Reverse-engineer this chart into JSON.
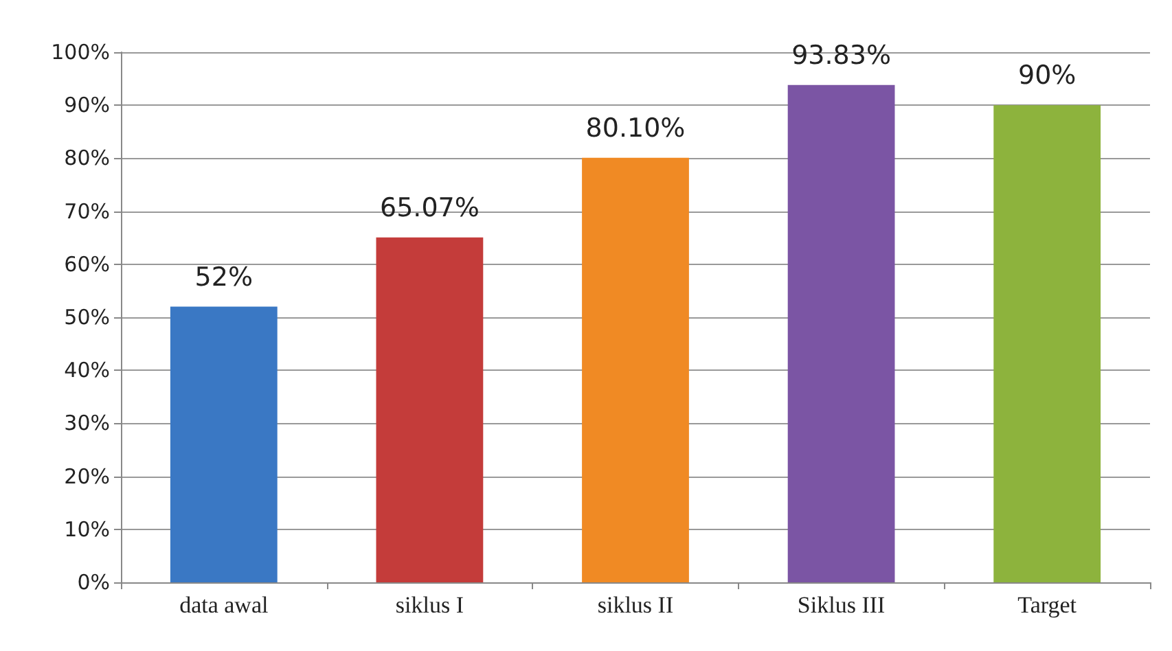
{
  "chart_data": {
    "type": "bar",
    "categories": [
      "data awal",
      "siklus I",
      "siklus II",
      "Siklus III",
      "Target"
    ],
    "values": [
      52,
      65.07,
      80.1,
      93.83,
      90
    ],
    "colors": [
      "#3a78c4",
      "#c43c3a",
      "#f08a24",
      "#7b55a4",
      "#8db33d"
    ],
    "value_labels": [
      "52%",
      "65.07%",
      "80.10%",
      "93.83%",
      "90%"
    ],
    "ylim": [
      0,
      100
    ],
    "yticks": [
      {
        "value": 0,
        "label": "0%"
      },
      {
        "value": 10,
        "label": "10%"
      },
      {
        "value": 20,
        "label": "20%"
      },
      {
        "value": 30,
        "label": "30%"
      },
      {
        "value": 40,
        "label": "40%"
      },
      {
        "value": 50,
        "label": "50%"
      },
      {
        "value": 60,
        "label": "60%"
      },
      {
        "value": 70,
        "label": "70%"
      },
      {
        "value": 80,
        "label": "80%"
      },
      {
        "value": 90,
        "label": "90%"
      },
      {
        "value": 100,
        "label": "100%"
      }
    ],
    "grid": "y"
  }
}
